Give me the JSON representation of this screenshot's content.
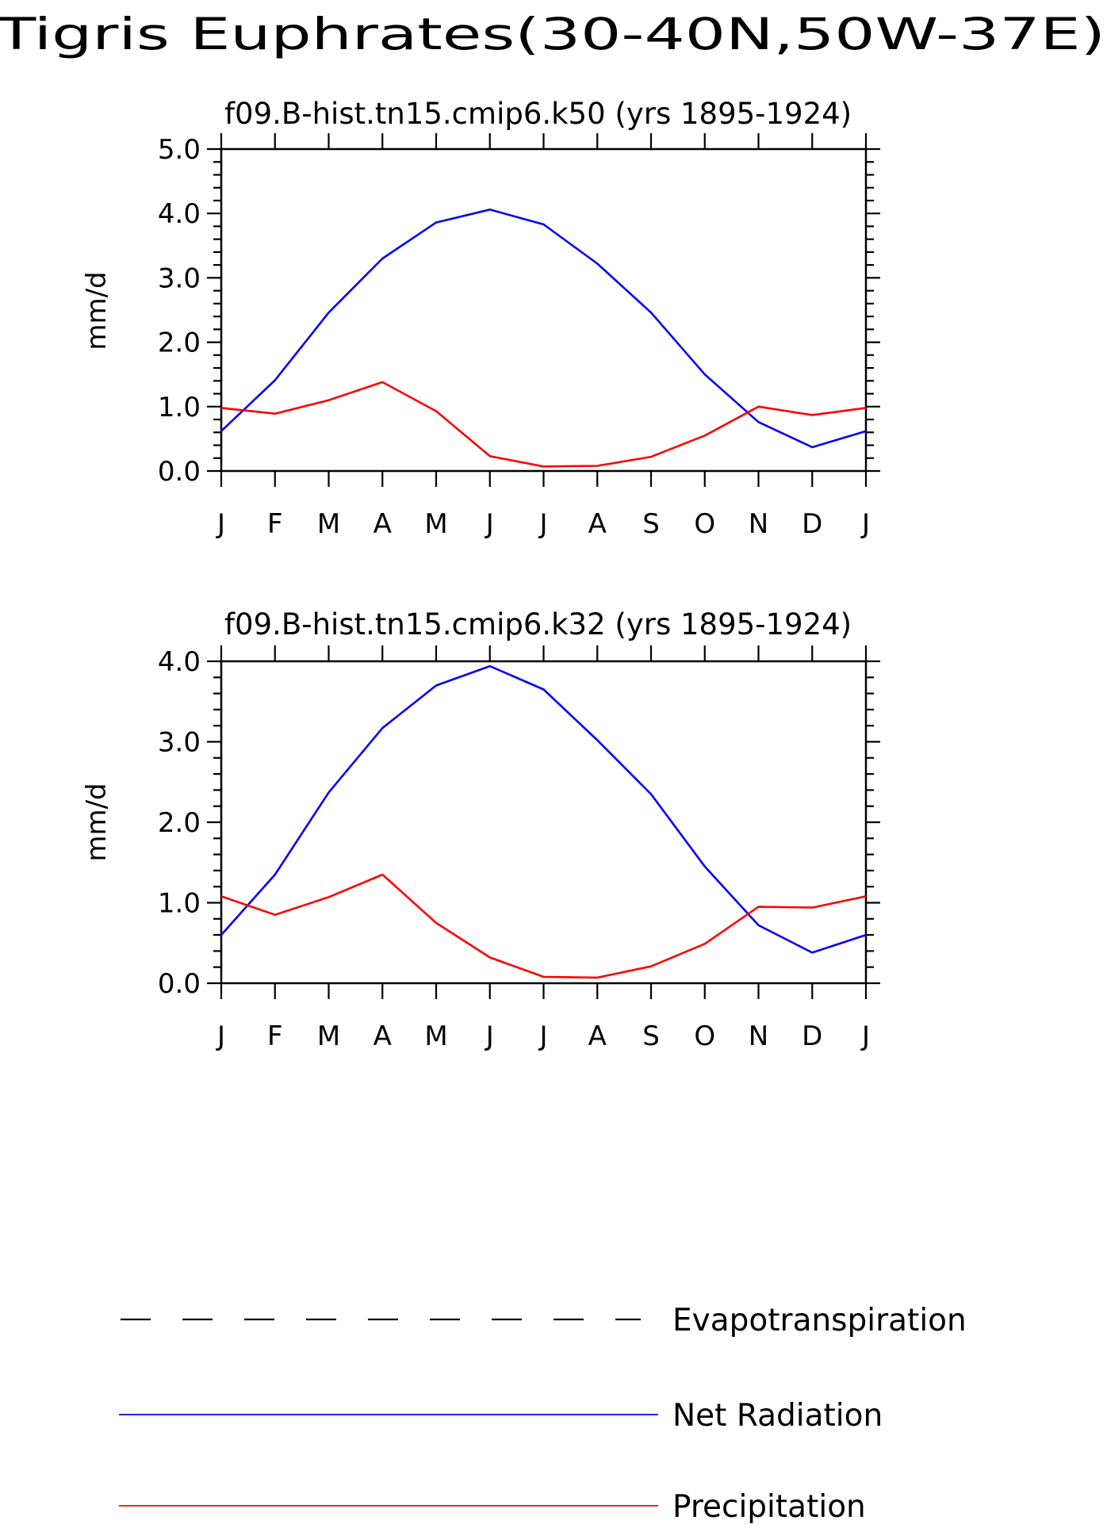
{
  "figure": {
    "title": "Tigris Euphrates(30-40N,50W-37E)"
  },
  "colors": {
    "net_radiation": "#0000ff",
    "precipitation": "#ff0000",
    "evapotranspiration": "#000000"
  },
  "legend": [
    {
      "name": "Evapotranspiration",
      "style": "dashed",
      "color": "#000000"
    },
    {
      "name": "Net Radiation",
      "style": "solid",
      "color": "#0000ff"
    },
    {
      "name": "Precipitation",
      "style": "solid",
      "color": "#ff0000"
    }
  ],
  "chart_data": [
    {
      "type": "line",
      "title": "f09.B-hist.tn15.cmip6.k50 (yrs 1895-1924)",
      "xlabel": "",
      "ylabel": "mm/d",
      "categories": [
        "J",
        "F",
        "M",
        "A",
        "M",
        "J",
        "J",
        "A",
        "S",
        "O",
        "N",
        "D",
        "J"
      ],
      "ylim": [
        0,
        5
      ],
      "yticks": [
        "0.0",
        "1.0",
        "2.0",
        "3.0",
        "4.0",
        "5.0"
      ],
      "grid": false,
      "series": [
        {
          "name": "Net Radiation",
          "color": "#0000ff",
          "values": [
            0.62,
            1.41,
            2.46,
            3.3,
            3.86,
            4.06,
            3.83,
            3.22,
            2.46,
            1.5,
            0.76,
            0.37,
            0.62
          ]
        },
        {
          "name": "Precipitation",
          "color": "#ff0000",
          "values": [
            0.98,
            0.89,
            1.1,
            1.38,
            0.93,
            0.23,
            0.07,
            0.08,
            0.22,
            0.55,
            1.0,
            0.87,
            0.98
          ]
        }
      ]
    },
    {
      "type": "line",
      "title": "f09.B-hist.tn15.cmip6.k32 (yrs 1895-1924)",
      "xlabel": "",
      "ylabel": "mm/d",
      "categories": [
        "J",
        "F",
        "M",
        "A",
        "M",
        "J",
        "J",
        "A",
        "S",
        "O",
        "N",
        "D",
        "J"
      ],
      "ylim": [
        0,
        4
      ],
      "yticks": [
        "0.0",
        "1.0",
        "2.0",
        "3.0",
        "4.0"
      ],
      "grid": false,
      "series": [
        {
          "name": "Net Radiation",
          "color": "#0000ff",
          "values": [
            0.6,
            1.35,
            2.37,
            3.17,
            3.7,
            3.94,
            3.65,
            3.02,
            2.35,
            1.45,
            0.72,
            0.38,
            0.6
          ]
        },
        {
          "name": "Precipitation",
          "color": "#ff0000",
          "values": [
            1.08,
            0.85,
            1.07,
            1.35,
            0.75,
            0.32,
            0.08,
            0.07,
            0.21,
            0.49,
            0.95,
            0.94,
            1.08
          ]
        }
      ]
    }
  ]
}
